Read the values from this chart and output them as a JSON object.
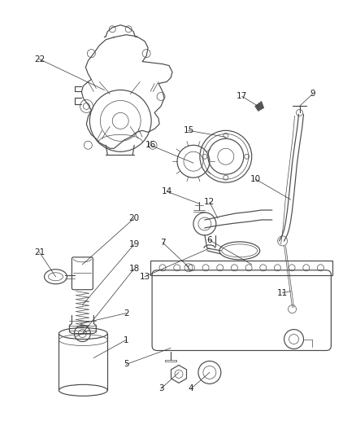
{
  "bg": "#ffffff",
  "lc": "#4a4a4a",
  "lw": 0.85,
  "lt": 0.5,
  "fs": 7.5,
  "fc": "#222222",
  "llw": 0.5
}
